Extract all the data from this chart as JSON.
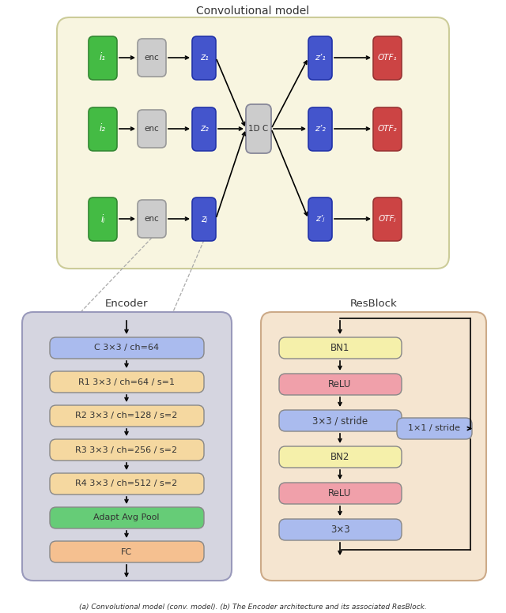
{
  "fig_width": 6.4,
  "fig_height": 7.76,
  "bg_color": "#ffffff",
  "top_panel": {
    "title": "Convolutional model",
    "bg": "#f8f5e0",
    "border": "#cccc99",
    "rows": [
      {
        "label_i": "i₁",
        "label_enc": "enc",
        "label_z": "z₁",
        "label_zp": "z’₁",
        "label_otf": "OTF₁"
      },
      {
        "label_i": "i₂",
        "label_enc": "enc",
        "label_z": "z₂",
        "label_zp": "z’₂",
        "label_otf": "OTF₂"
      },
      {
        "label_i": "iⱼ",
        "label_enc": "enc",
        "label_z": "zⱼ",
        "label_zp": "z’ⱼ",
        "label_otf": "OTFⱼ"
      }
    ],
    "center_label": "1D C",
    "color_green": "#44bb44",
    "color_gray_enc": "#cccccc",
    "color_blue": "#4455cc",
    "color_red": "#cc4444",
    "color_center": "#cccccc"
  },
  "encoder_panel": {
    "title": "Encoder",
    "bg": "#d5d5e0",
    "border": "#9999bb",
    "boxes": [
      {
        "label": "C 3×3 / ch=64",
        "color": "#aabbee"
      },
      {
        "label": "R1 3×3 / ch=64 / s=1",
        "color": "#f5d8a0"
      },
      {
        "label": "R2 3×3 / ch=128 / s=2",
        "color": "#f5d8a0"
      },
      {
        "label": "R3 3×3 / ch=256 / s=2",
        "color": "#f5d8a0"
      },
      {
        "label": "R4 3×3 / ch=512 / s=2",
        "color": "#f5d8a0"
      },
      {
        "label": "Adapt Avg Pool",
        "color": "#66cc77"
      },
      {
        "label": "FC",
        "color": "#f5c090"
      }
    ]
  },
  "resblock_panel": {
    "title": "ResBlock",
    "bg": "#f5e5d0",
    "border": "#ccaa88",
    "boxes": [
      {
        "label": "BN1",
        "color": "#f5f0aa"
      },
      {
        "label": "ReLU",
        "color": "#f0a0aa"
      },
      {
        "label": "3×3 / stride",
        "color": "#aabbee"
      },
      {
        "label": "BN2",
        "color": "#f5f0aa"
      },
      {
        "label": "ReLU",
        "color": "#f0a0aa"
      },
      {
        "label": "3×3",
        "color": "#aabbee"
      }
    ],
    "skip_label": "1×1 / stride",
    "skip_color": "#aabbee"
  },
  "caption": "(a) Convolutional model (conv. model). (b) The Encoder architecture and its associated ResBlock."
}
